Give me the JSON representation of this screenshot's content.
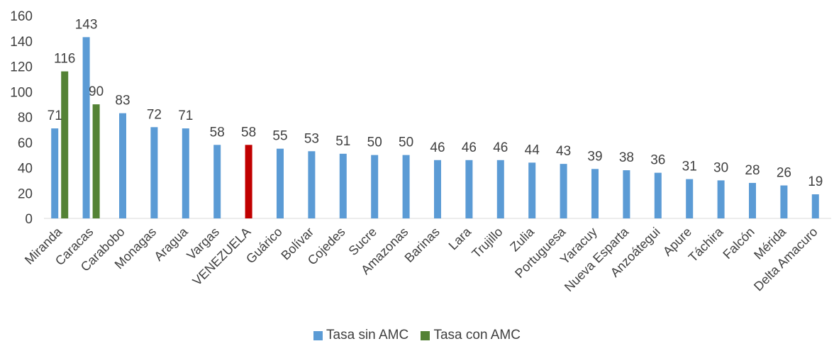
{
  "chart_data": {
    "type": "bar",
    "title": "",
    "xlabel": "",
    "ylabel": "",
    "ylim": [
      0,
      160
    ],
    "yticks": [
      0,
      20,
      40,
      60,
      80,
      100,
      120,
      140,
      160
    ],
    "grid": false,
    "legend_position": "bottom",
    "categories": [
      "Miranda",
      "Caracas",
      "Carabobo",
      "Monagas",
      "Aragua",
      "Vargas",
      "VENEZUELA",
      "Guárico",
      "Bolívar",
      "Cojedes",
      "Sucre",
      "Amazonas",
      "Barinas",
      "Lara",
      "Trujillo",
      "Zulia",
      "Portuguesa",
      "Yaracuy",
      "Nueva Esparta",
      "Anzoátegui",
      "Apure",
      "Táchira",
      "Falcón",
      "Mérida",
      "Delta Amacuro"
    ],
    "series": [
      {
        "name": "Tasa sin AMC",
        "color": "#5B9BD5",
        "values": [
          71,
          143,
          83,
          72,
          71,
          58,
          58,
          55,
          53,
          51,
          50,
          50,
          46,
          46,
          46,
          44,
          43,
          39,
          38,
          36,
          31,
          30,
          28,
          26,
          19
        ]
      },
      {
        "name": "Tasa con AMC",
        "color": "#548235",
        "values": [
          116,
          90,
          null,
          null,
          null,
          null,
          null,
          null,
          null,
          null,
          null,
          null,
          null,
          null,
          null,
          null,
          null,
          null,
          null,
          null,
          null,
          null,
          null,
          null,
          null
        ]
      }
    ],
    "highlight": {
      "category": "VENEZUELA",
      "color": "#C00000"
    }
  }
}
